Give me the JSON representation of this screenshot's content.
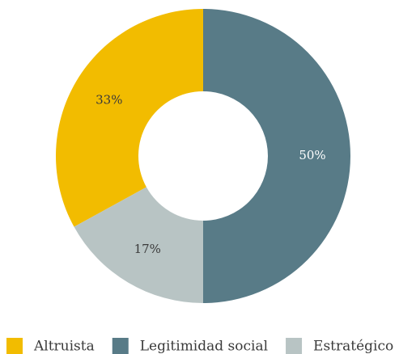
{
  "chart_data": {
    "type": "donut",
    "categories": [
      "Altruista",
      "Legitimidad social",
      "Estratégico"
    ],
    "values": [
      33,
      50,
      17
    ],
    "value_labels": [
      "33%",
      "50%",
      "17%"
    ],
    "colors": [
      "#f2bc00",
      "#587b87",
      "#b8c4c4"
    ],
    "legend": "bottom"
  }
}
